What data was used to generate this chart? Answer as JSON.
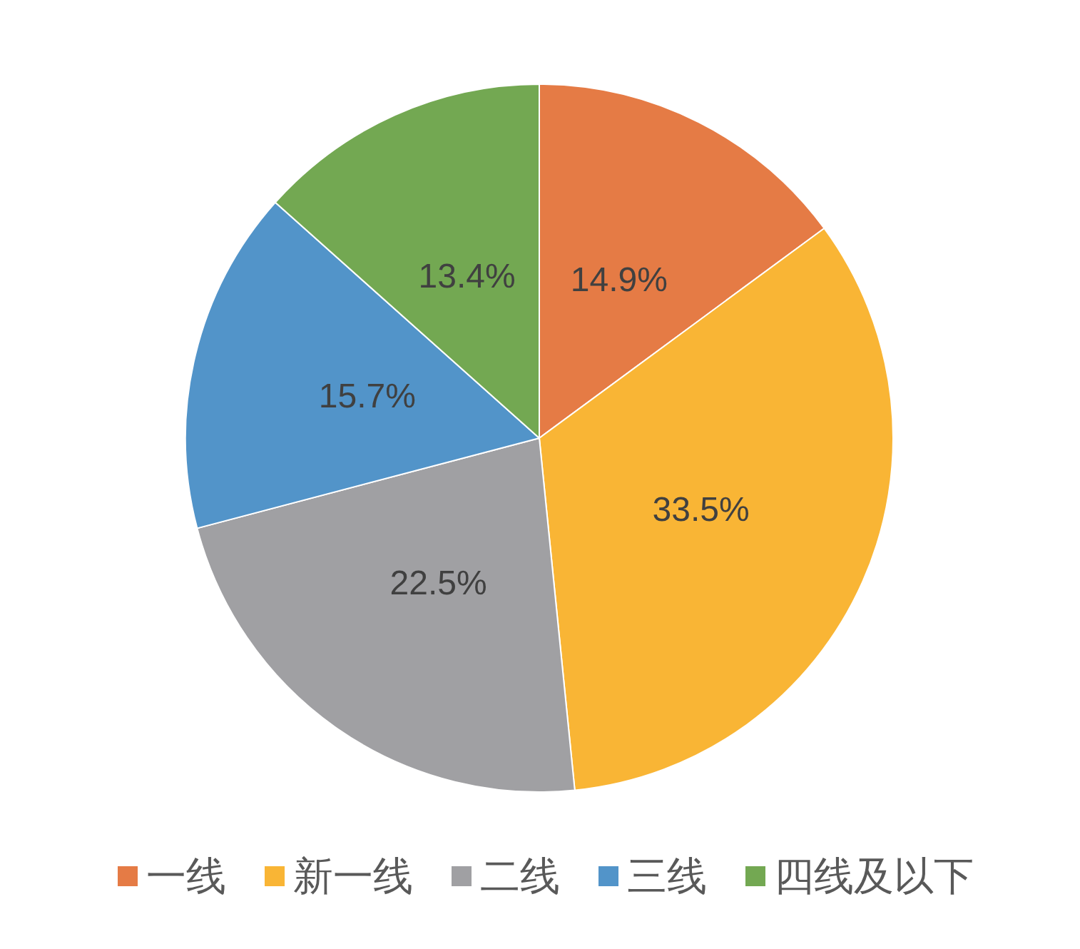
{
  "chart_data": {
    "type": "pie",
    "categories": [
      "一线",
      "新一线",
      "二线",
      "三线",
      "四线及以下"
    ],
    "values": [
      14.9,
      33.5,
      22.5,
      15.7,
      13.4
    ],
    "colors": [
      "#e57b45",
      "#f9b535",
      "#a0a0a3",
      "#5294c9",
      "#73a852"
    ],
    "value_labels": [
      "14.9%",
      "33.5%",
      "22.5%",
      "15.7%",
      "13.4%"
    ],
    "legend": "bottom"
  }
}
